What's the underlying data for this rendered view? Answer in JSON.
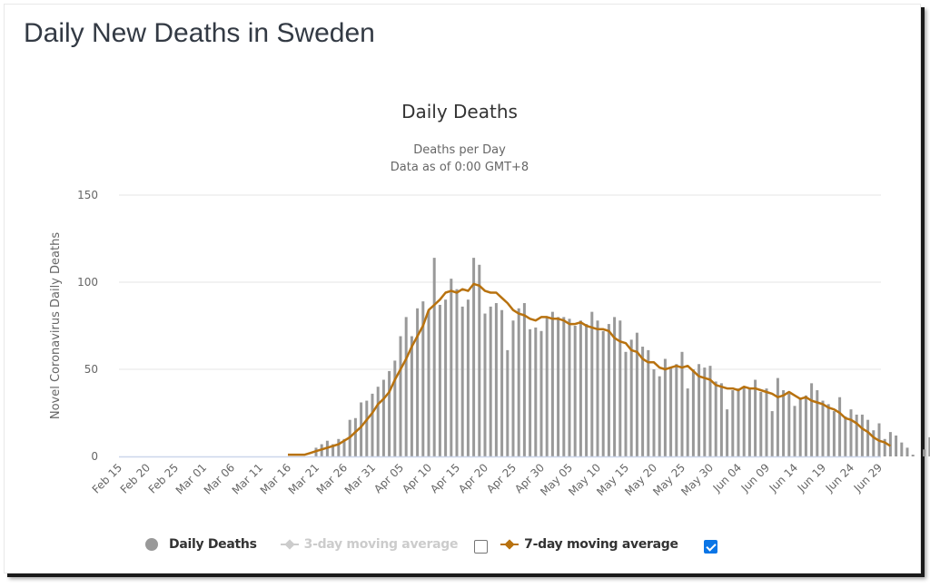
{
  "page": {
    "title": "Daily New Deaths in Sweden"
  },
  "legend": {
    "items": [
      {
        "label": "Daily Deaths",
        "color": "#999999",
        "active": true
      },
      {
        "label": "3-day moving average",
        "color": "#cccccc",
        "active": false,
        "checkbox": false
      },
      {
        "label": "7-day moving average",
        "color": "#b8720f",
        "active": true,
        "checkbox": true
      }
    ]
  },
  "chart_data": {
    "type": "bar",
    "title": "Daily Deaths",
    "subtitle": [
      "Deaths per Day",
      "Data as of 0:00 GMT+8"
    ],
    "xlabel": "",
    "ylabel": "Novel Coronavirus Daily Deaths",
    "ylim": [
      0,
      150
    ],
    "yticks": [
      0,
      50,
      100,
      150
    ],
    "grid": true,
    "legend_position": "bottom",
    "start_date": "Feb 15",
    "xtick_labels": [
      "Feb 15",
      "Feb 20",
      "Feb 25",
      "Mar 01",
      "Mar 06",
      "Mar 11",
      "Mar 16",
      "Mar 21",
      "Mar 26",
      "Mar 31",
      "Apr 05",
      "Apr 10",
      "Apr 15",
      "Apr 20",
      "Apr 25",
      "Apr 30",
      "May 05",
      "May 10",
      "May 15",
      "May 20",
      "May 25",
      "May 30",
      "Jun 04",
      "Jun 09",
      "Jun 14",
      "Jun 19",
      "Jun 24",
      "Jun 29"
    ],
    "series": [
      {
        "name": "Daily Deaths",
        "type": "bar",
        "color": "#999999",
        "values": [
          0,
          0,
          0,
          0,
          0,
          0,
          0,
          0,
          0,
          0,
          0,
          0,
          0,
          0,
          0,
          0,
          0,
          0,
          0,
          0,
          0,
          0,
          0,
          0,
          0,
          0,
          0,
          0,
          0,
          0,
          0,
          0,
          0,
          0,
          0,
          5,
          7,
          9,
          7,
          10,
          10,
          21,
          22,
          31,
          32,
          36,
          40,
          44,
          49,
          55,
          69,
          80,
          69,
          85,
          89,
          84,
          114,
          87,
          90,
          102,
          96,
          86,
          90,
          114,
          110,
          82,
          86,
          88,
          84,
          61,
          78,
          85,
          88,
          73,
          74,
          72,
          80,
          83,
          80,
          80,
          79,
          75,
          78,
          76,
          83,
          78,
          72,
          76,
          80,
          78,
          60,
          67,
          71,
          63,
          61,
          50,
          46,
          56,
          51,
          53,
          60,
          39,
          50,
          53,
          51,
          52,
          43,
          42,
          27,
          38,
          39,
          40,
          39,
          44,
          37,
          39,
          26,
          45,
          38,
          36,
          29,
          33,
          35,
          42,
          38,
          32,
          30,
          26,
          34,
          23,
          27,
          24,
          24,
          21,
          15,
          19,
          10,
          14,
          12,
          8,
          5,
          1,
          0,
          4,
          11
        ],
        "note": "values listed day by day from Feb 15"
      },
      {
        "name": "7-day moving average",
        "type": "line",
        "color": "#b8720f",
        "values": [
          null,
          null,
          null,
          null,
          null,
          null,
          null,
          null,
          null,
          null,
          null,
          null,
          null,
          null,
          null,
          null,
          null,
          null,
          null,
          null,
          null,
          null,
          null,
          null,
          null,
          null,
          null,
          null,
          null,
          null,
          1,
          1,
          1,
          1,
          2,
          3,
          4,
          5,
          6,
          7,
          9,
          11,
          14,
          17,
          21,
          25,
          30,
          33,
          37,
          44,
          50,
          56,
          63,
          69,
          75,
          84,
          87,
          90,
          94,
          95,
          94,
          96,
          95,
          99,
          98,
          95,
          94,
          94,
          91,
          88,
          84,
          82,
          81,
          79,
          78,
          80,
          80,
          79,
          79,
          78,
          76,
          76,
          77,
          75,
          74,
          73,
          73,
          72,
          68,
          66,
          65,
          61,
          60,
          56,
          54,
          54,
          51,
          50,
          51,
          52,
          51,
          52,
          49,
          46,
          45,
          44,
          41,
          40,
          39,
          39,
          38,
          40,
          39,
          39,
          38,
          37,
          36,
          34,
          35,
          37,
          35,
          33,
          34,
          32,
          31,
          30,
          28,
          27,
          25,
          22,
          21,
          19,
          16,
          14,
          11,
          9,
          8,
          6
        ]
      },
      {
        "name": "3-day moving average",
        "type": "line",
        "color": "#cccccc",
        "visible": false,
        "values": []
      }
    ]
  }
}
